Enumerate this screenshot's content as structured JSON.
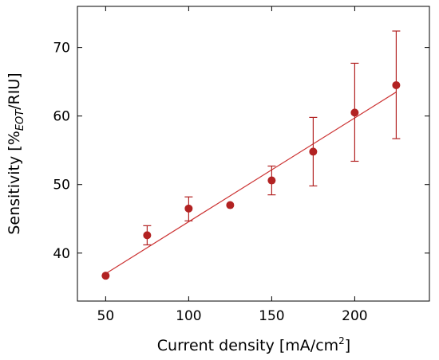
{
  "chart_data": {
    "type": "scatter",
    "xlabel": "Current density [mA/cm",
    "xlabel_sup": "2",
    "xlabel_end": "]",
    "ylabel_pre": "Sensitivity [%",
    "ylabel_sub": "EOT",
    "ylabel_post": "/RIU]",
    "xlim": [
      33,
      245
    ],
    "ylim": [
      33,
      76
    ],
    "x_ticks": [
      50,
      100,
      150,
      200
    ],
    "y_ticks": [
      40,
      50,
      60,
      70
    ],
    "grid": false,
    "series": [
      {
        "x": [
          50,
          75,
          100,
          125,
          150,
          175,
          200,
          225
        ],
        "y": [
          36.7,
          42.6,
          46.5,
          47.0,
          50.6,
          54.8,
          60.5,
          64.5
        ],
        "err_low": [
          0,
          1.4,
          1.8,
          0,
          2.1,
          5.0,
          7.1,
          7.8
        ],
        "err_high": [
          0,
          1.4,
          1.7,
          0,
          2.1,
          5.0,
          7.2,
          7.9
        ],
        "color": "#b22222"
      }
    ],
    "fit_line": {
      "x": [
        50,
        225
      ],
      "y": [
        37.0,
        63.5
      ],
      "color": "#cc3333"
    }
  }
}
